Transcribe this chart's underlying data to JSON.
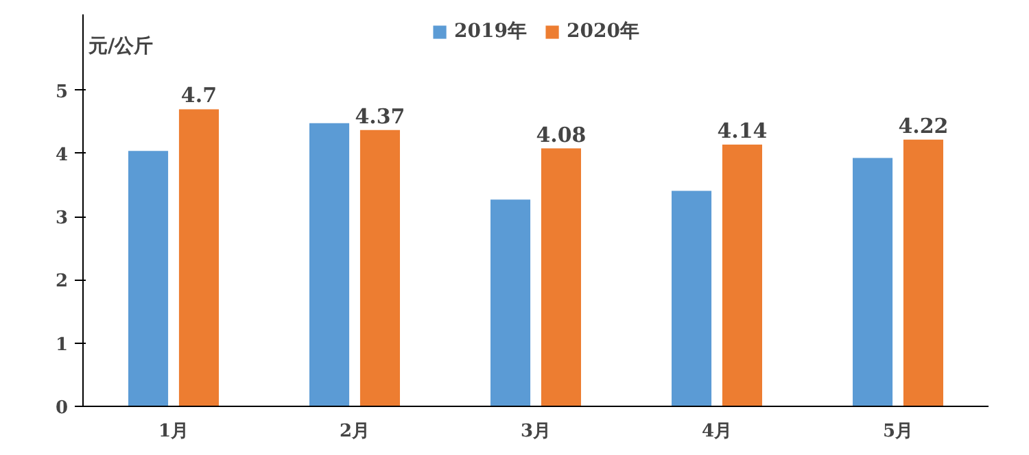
{
  "chart_data": {
    "type": "bar",
    "ylabel": "元/公斤",
    "categories": [
      "1月",
      "2月",
      "3月",
      "4月",
      "5月"
    ],
    "series": [
      {
        "name": "2019年",
        "color": "#5b9bd5",
        "values": [
          4.04,
          4.48,
          3.27,
          3.41,
          3.93
        ]
      },
      {
        "name": "2020年",
        "color": "#ed7d31",
        "values": [
          4.7,
          4.37,
          4.08,
          4.14,
          4.22
        ],
        "value_labels": [
          "4.7",
          "4.37",
          "4.08",
          "4.14",
          "4.22"
        ]
      }
    ],
    "ylim": [
      0,
      6.2
    ],
    "yticks": [
      0,
      1,
      2,
      3,
      4,
      5
    ],
    "grid": false,
    "legend": "top"
  }
}
